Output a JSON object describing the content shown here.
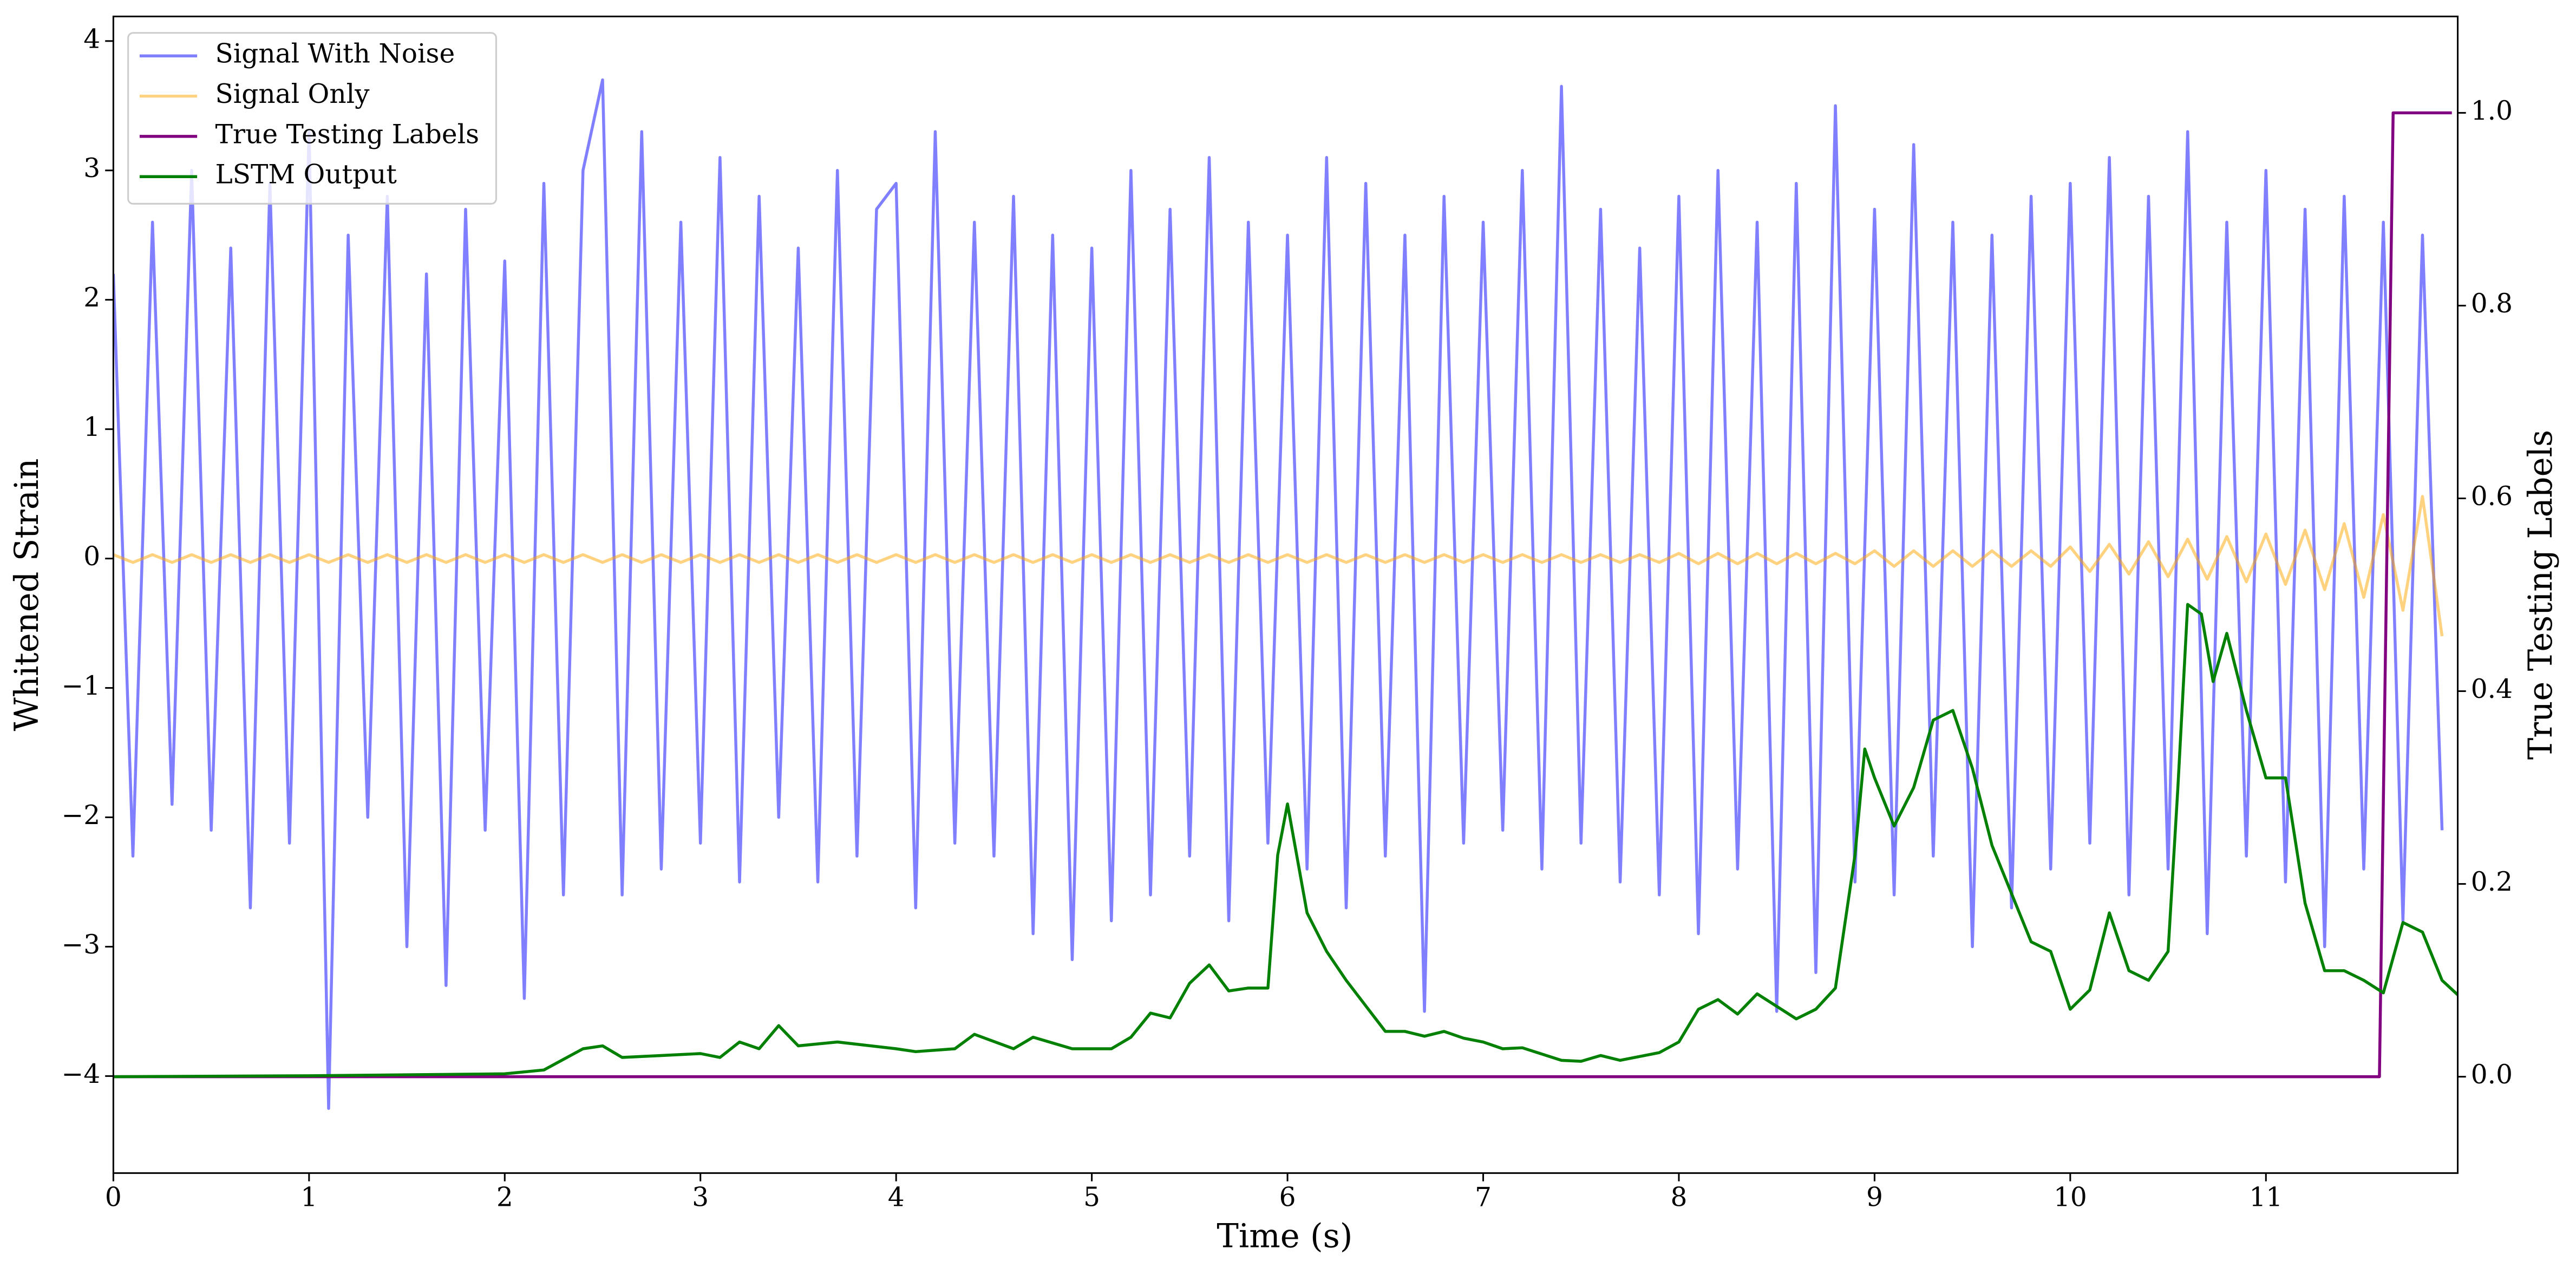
{
  "chart_data": {
    "type": "line",
    "xlabel": "Time (s)",
    "ylabel": "Whitened Strain",
    "y2label": "True Testing Labels",
    "legend": "upper left",
    "xlim": [
      0,
      11.98
    ],
    "ylim": [
      -4.75,
      4.19
    ],
    "y2lim": [
      -0.1,
      1.1
    ],
    "xticks": [
      0,
      1,
      2,
      3,
      4,
      5,
      6,
      7,
      8,
      9,
      10,
      11
    ],
    "yticks": [
      {
        "value": -4,
        "label": "−4"
      },
      {
        "value": -3,
        "label": "−3"
      },
      {
        "value": -2,
        "label": "−2"
      },
      {
        "value": -1,
        "label": "−1"
      },
      0,
      1,
      2,
      3,
      4
    ],
    "y2ticks": [
      {
        "value": 0,
        "label": "0.0"
      },
      0.2,
      0.4,
      0.6,
      0.8,
      {
        "value": 1,
        "label": "1.0"
      }
    ],
    "series": [
      {
        "name": "Signal With Noise",
        "color": "#0000ff",
        "opacity": 0.5,
        "x": [
          0,
          0.1,
          0.2,
          0.3,
          0.4,
          0.5,
          0.6,
          0.7,
          0.8,
          0.9,
          1,
          1.1,
          1.2,
          1.3,
          1.4,
          1.5,
          1.6,
          1.7,
          1.8,
          1.9,
          2,
          2.1,
          2.2,
          2.3,
          2.4,
          2.5,
          2.6,
          2.7,
          2.8,
          2.9,
          3,
          3.1,
          3.2,
          3.3,
          3.4,
          3.5,
          3.6,
          3.7,
          3.8,
          3.9,
          4,
          4.1,
          4.2,
          4.3,
          4.4,
          4.5,
          4.6,
          4.7,
          4.8,
          4.9,
          5,
          5.1,
          5.2,
          5.3,
          5.4,
          5.5,
          5.6,
          5.7,
          5.8,
          5.9,
          6,
          6.1,
          6.2,
          6.3,
          6.4,
          6.5,
          6.6,
          6.7,
          6.8,
          6.9,
          7,
          7.1,
          7.2,
          7.3,
          7.4,
          7.5,
          7.6,
          7.7,
          7.8,
          7.9,
          8,
          8.1,
          8.2,
          8.3,
          8.4,
          8.5,
          8.6,
          8.7,
          8.8,
          8.9,
          9,
          9.1,
          9.2,
          9.3,
          9.4,
          9.5,
          9.6,
          9.7,
          9.8,
          9.9,
          10,
          10.1,
          10.2,
          10.3,
          10.4,
          10.5,
          10.6,
          10.7,
          10.8,
          10.9,
          11,
          11.1,
          11.2,
          11.3,
          11.4,
          11.5,
          11.6,
          11.7,
          11.8,
          11.9
        ],
        "values": [
          2.2,
          -2.3,
          2.6,
          -1.9,
          3.0,
          -2.1,
          2.4,
          -2.7,
          2.9,
          -2.2,
          3.3,
          -4.25,
          2.5,
          -2.0,
          2.8,
          -3.0,
          2.2,
          -3.3,
          2.7,
          -2.1,
          2.3,
          -3.4,
          2.9,
          -2.6,
          3.0,
          3.7,
          -2.6,
          3.3,
          -2.4,
          2.6,
          -2.2,
          3.1,
          -2.5,
          2.8,
          -2.0,
          2.4,
          -2.5,
          3.0,
          -2.3,
          2.7,
          2.9,
          -2.7,
          3.3,
          -2.2,
          2.6,
          -2.3,
          2.8,
          -2.9,
          2.5,
          -3.1,
          2.4,
          -2.8,
          3.0,
          -2.6,
          2.7,
          -2.3,
          3.1,
          -2.8,
          2.6,
          -2.2,
          2.5,
          -2.4,
          3.1,
          -2.7,
          2.9,
          -2.3,
          2.5,
          -3.5,
          2.8,
          -2.2,
          2.6,
          -2.1,
          3.0,
          -2.4,
          3.65,
          -2.2,
          2.7,
          -2.5,
          2.4,
          -2.6,
          2.8,
          -2.9,
          3.0,
          -2.4,
          2.6,
          -3.5,
          2.9,
          -3.2,
          3.5,
          -2.5,
          2.7,
          -2.6,
          3.2,
          -2.3,
          2.6,
          -3.0,
          2.5,
          -2.7,
          2.8,
          -2.4,
          2.9,
          -2.2,
          3.1,
          -2.6,
          2.8,
          -2.4,
          3.3,
          -2.9,
          2.6,
          -2.3,
          3.0,
          -2.5,
          2.7,
          -3.0,
          2.8,
          -2.4,
          2.6,
          -2.8,
          2.5,
          -2.1
        ]
      },
      {
        "name": "Signal Only",
        "color": "#ffa500",
        "opacity": 0.5,
        "x": [
          0,
          0.1,
          0.2,
          0.3,
          0.4,
          0.5,
          0.6,
          0.7,
          0.8,
          0.9,
          1,
          1.1,
          1.2,
          1.3,
          1.4,
          1.5,
          1.6,
          1.7,
          1.8,
          1.9,
          2,
          2.1,
          2.2,
          2.3,
          2.4,
          2.5,
          2.6,
          2.7,
          2.8,
          2.9,
          3,
          3.1,
          3.2,
          3.3,
          3.4,
          3.5,
          3.6,
          3.7,
          3.8,
          3.9,
          4,
          4.1,
          4.2,
          4.3,
          4.4,
          4.5,
          4.6,
          4.7,
          4.8,
          4.9,
          5,
          5.1,
          5.2,
          5.3,
          5.4,
          5.5,
          5.6,
          5.7,
          5.8,
          5.9,
          6,
          6.1,
          6.2,
          6.3,
          6.4,
          6.5,
          6.6,
          6.7,
          6.8,
          6.9,
          7,
          7.1,
          7.2,
          7.3,
          7.4,
          7.5,
          7.6,
          7.7,
          7.8,
          7.9,
          8,
          8.1,
          8.2,
          8.3,
          8.4,
          8.5,
          8.6,
          8.7,
          8.8,
          8.9,
          9,
          9.1,
          9.2,
          9.3,
          9.4,
          9.5,
          9.6,
          9.7,
          9.8,
          9.9,
          10,
          10.1,
          10.2,
          10.3,
          10.4,
          10.5,
          10.6,
          10.7,
          10.8,
          10.9,
          11,
          11.1,
          11.2,
          11.3,
          11.4,
          11.5,
          11.6,
          11.7,
          11.8,
          11.9
        ],
        "values": [
          0.03,
          -0.03,
          0.03,
          -0.03,
          0.03,
          -0.03,
          0.03,
          -0.03,
          0.03,
          -0.03,
          0.03,
          -0.03,
          0.03,
          -0.03,
          0.03,
          -0.03,
          0.03,
          -0.03,
          0.03,
          -0.03,
          0.03,
          -0.03,
          0.03,
          -0.03,
          0.03,
          -0.03,
          0.03,
          -0.03,
          0.03,
          -0.03,
          0.03,
          -0.03,
          0.03,
          -0.03,
          0.03,
          -0.03,
          0.03,
          -0.03,
          0.03,
          -0.03,
          0.03,
          -0.03,
          0.03,
          -0.03,
          0.03,
          -0.03,
          0.03,
          -0.03,
          0.03,
          -0.03,
          0.03,
          -0.03,
          0.03,
          -0.03,
          0.03,
          -0.03,
          0.03,
          -0.03,
          0.03,
          -0.03,
          0.03,
          -0.03,
          0.03,
          -0.03,
          0.03,
          -0.03,
          0.03,
          -0.03,
          0.03,
          -0.03,
          0.03,
          -0.03,
          0.03,
          -0.03,
          0.03,
          -0.03,
          0.03,
          -0.03,
          0.03,
          -0.03,
          0.04,
          -0.04,
          0.04,
          -0.04,
          0.04,
          -0.04,
          0.04,
          -0.04,
          0.04,
          -0.04,
          0.06,
          -0.06,
          0.06,
          -0.06,
          0.06,
          -0.06,
          0.06,
          -0.06,
          0.06,
          -0.06,
          0.09,
          -0.1,
          0.11,
          -0.12,
          0.13,
          -0.14,
          0.15,
          -0.16,
          0.17,
          -0.18,
          0.19,
          -0.2,
          0.22,
          -0.24,
          0.27,
          -0.3,
          0.34,
          -0.4,
          0.48,
          -0.6
        ]
      },
      {
        "name": "True Testing Labels",
        "color": "#800080",
        "axis": "y2",
        "x": [
          0,
          11.58,
          11.65,
          11.95
        ],
        "values": [
          0,
          0,
          1,
          1
        ]
      },
      {
        "name": "LSTM Output",
        "color": "#008000",
        "axis": "y2",
        "x": [
          0,
          1,
          2,
          2.2,
          2.4,
          2.5,
          2.6,
          2.8,
          3.0,
          3.1,
          3.2,
          3.3,
          3.4,
          3.5,
          3.7,
          4.0,
          4.1,
          4.3,
          4.4,
          4.6,
          4.7,
          4.9,
          5.1,
          5.2,
          5.3,
          5.4,
          5.5,
          5.6,
          5.7,
          5.8,
          5.9,
          5.95,
          6.0,
          6.1,
          6.2,
          6.3,
          6.5,
          6.6,
          6.7,
          6.8,
          6.9,
          7.0,
          7.1,
          7.2,
          7.4,
          7.5,
          7.6,
          7.7,
          7.9,
          8.0,
          8.1,
          8.2,
          8.3,
          8.4,
          8.6,
          8.7,
          8.8,
          8.9,
          8.95,
          9.0,
          9.1,
          9.2,
          9.3,
          9.4,
          9.5,
          9.6,
          9.8,
          9.9,
          10.0,
          10.1,
          10.2,
          10.3,
          10.4,
          10.5,
          10.55,
          10.6,
          10.67,
          10.73,
          10.8,
          10.9,
          11.0,
          11.1,
          11.2,
          11.3,
          11.4,
          11.5,
          11.6,
          11.7,
          11.8,
          11.9,
          11.98
        ],
        "values": [
          0,
          0.001,
          0.003,
          0.007,
          0.029,
          0.032,
          0.02,
          0.022,
          0.024,
          0.02,
          0.036,
          0.029,
          0.053,
          0.032,
          0.036,
          0.029,
          0.026,
          0.029,
          0.044,
          0.029,
          0.041,
          0.029,
          0.029,
          0.041,
          0.066,
          0.061,
          0.097,
          0.116,
          0.089,
          0.092,
          0.092,
          0.23,
          0.283,
          0.17,
          0.13,
          0.1,
          0.047,
          0.047,
          0.042,
          0.047,
          0.04,
          0.036,
          0.029,
          0.03,
          0.017,
          0.016,
          0.022,
          0.017,
          0.025,
          0.036,
          0.07,
          0.08,
          0.065,
          0.086,
          0.06,
          0.07,
          0.092,
          0.23,
          0.34,
          0.31,
          0.26,
          0.3,
          0.37,
          0.38,
          0.32,
          0.24,
          0.14,
          0.13,
          0.07,
          0.09,
          0.17,
          0.11,
          0.1,
          0.13,
          0.3,
          0.49,
          0.48,
          0.41,
          0.46,
          0.38,
          0.31,
          0.31,
          0.18,
          0.11,
          0.11,
          0.1,
          0.087,
          0.16,
          0.15,
          0.1,
          0.085
        ]
      }
    ]
  }
}
